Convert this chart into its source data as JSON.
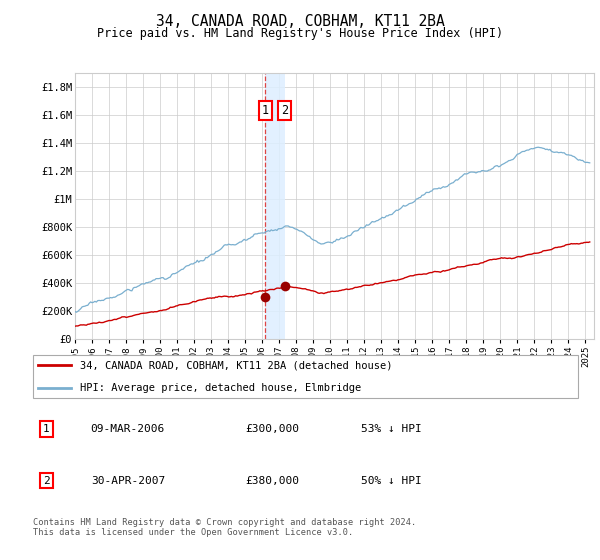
{
  "title": "34, CANADA ROAD, COBHAM, KT11 2BA",
  "subtitle": "Price paid vs. HM Land Registry's House Price Index (HPI)",
  "ylabel_ticks": [
    "£0",
    "£200K",
    "£400K",
    "£600K",
    "£800K",
    "£1M",
    "£1.2M",
    "£1.4M",
    "£1.6M",
    "£1.8M"
  ],
  "ytick_values": [
    0,
    200000,
    400000,
    600000,
    800000,
    1000000,
    1200000,
    1400000,
    1600000,
    1800000
  ],
  "ylim": [
    0,
    1900000
  ],
  "xlim_start": 1995.0,
  "xlim_end": 2025.5,
  "transaction1": {
    "date_label": "09-MAR-2006",
    "price": 300000,
    "year": 2006.18,
    "label": "1",
    "hpi_pct": "53% ↓ HPI"
  },
  "transaction2": {
    "date_label": "30-APR-2007",
    "price": 380000,
    "year": 2007.33,
    "label": "2",
    "hpi_pct": "50% ↓ HPI"
  },
  "legend_line1": "34, CANADA ROAD, COBHAM, KT11 2BA (detached house)",
  "legend_line2": "HPI: Average price, detached house, Elmbridge",
  "footer": "Contains HM Land Registry data © Crown copyright and database right 2024.\nThis data is licensed under the Open Government Licence v3.0.",
  "line_color_red": "#cc0000",
  "line_color_blue": "#7aafcf",
  "grid_color": "#cccccc",
  "highlight_color": "#ddeeff",
  "hpi_seed": 17,
  "red_seed": 23
}
